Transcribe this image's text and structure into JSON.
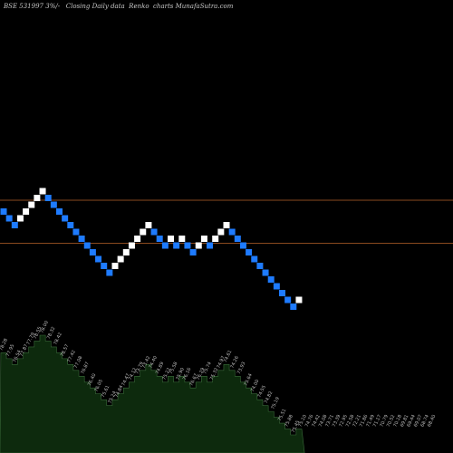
{
  "header": {
    "symbol": "BSE 531997",
    "change": "3%",
    "extra": "/-",
    "description": "Closing Daily data",
    "chart_type": "Renko",
    "source": "charts MunafaSutra.com"
  },
  "colors": {
    "background": "#000000",
    "up_brick": "#ffffff",
    "down_brick": "#1e7bff",
    "level_line": "#8a4a1f",
    "volume_fill": "#0d2a0d",
    "volume_stroke": "#3a6a3a"
  },
  "chart_data": {
    "type": "renko",
    "title": "",
    "levels": [
      77.4,
      73.6
    ],
    "bricks": [
      {
        "close": 76.4,
        "dir": "down"
      },
      {
        "close": 75.8,
        "dir": "down"
      },
      {
        "close": 75.2,
        "dir": "down"
      },
      {
        "close": 75.8,
        "dir": "up"
      },
      {
        "close": 76.4,
        "dir": "up"
      },
      {
        "close": 77.0,
        "dir": "up"
      },
      {
        "close": 77.6,
        "dir": "up"
      },
      {
        "close": 78.2,
        "dir": "up"
      },
      {
        "close": 77.6,
        "dir": "down"
      },
      {
        "close": 77.0,
        "dir": "down"
      },
      {
        "close": 76.4,
        "dir": "down"
      },
      {
        "close": 75.8,
        "dir": "down"
      },
      {
        "close": 75.2,
        "dir": "down"
      },
      {
        "close": 74.6,
        "dir": "down"
      },
      {
        "close": 74.0,
        "dir": "down"
      },
      {
        "close": 73.4,
        "dir": "down"
      },
      {
        "close": 72.8,
        "dir": "down"
      },
      {
        "close": 72.2,
        "dir": "down"
      },
      {
        "close": 71.6,
        "dir": "down"
      },
      {
        "close": 71.0,
        "dir": "down"
      },
      {
        "close": 71.6,
        "dir": "up"
      },
      {
        "close": 72.2,
        "dir": "up"
      },
      {
        "close": 72.8,
        "dir": "up"
      },
      {
        "close": 73.4,
        "dir": "up"
      },
      {
        "close": 74.0,
        "dir": "up"
      },
      {
        "close": 74.6,
        "dir": "up"
      },
      {
        "close": 75.2,
        "dir": "up"
      },
      {
        "close": 74.6,
        "dir": "down"
      },
      {
        "close": 74.0,
        "dir": "down"
      },
      {
        "close": 73.4,
        "dir": "down"
      },
      {
        "close": 74.0,
        "dir": "up"
      },
      {
        "close": 73.4,
        "dir": "down"
      },
      {
        "close": 74.0,
        "dir": "up"
      },
      {
        "close": 73.4,
        "dir": "down"
      },
      {
        "close": 72.8,
        "dir": "down"
      },
      {
        "close": 73.4,
        "dir": "up"
      },
      {
        "close": 74.0,
        "dir": "up"
      },
      {
        "close": 73.4,
        "dir": "down"
      },
      {
        "close": 74.0,
        "dir": "up"
      },
      {
        "close": 74.6,
        "dir": "up"
      },
      {
        "close": 75.2,
        "dir": "up"
      },
      {
        "close": 74.6,
        "dir": "down"
      },
      {
        "close": 74.0,
        "dir": "down"
      },
      {
        "close": 73.4,
        "dir": "down"
      },
      {
        "close": 72.8,
        "dir": "down"
      },
      {
        "close": 72.2,
        "dir": "down"
      },
      {
        "close": 71.6,
        "dir": "down"
      },
      {
        "close": 71.0,
        "dir": "down"
      },
      {
        "close": 70.4,
        "dir": "down"
      },
      {
        "close": 69.8,
        "dir": "down"
      },
      {
        "close": 69.2,
        "dir": "down"
      },
      {
        "close": 68.6,
        "dir": "down"
      },
      {
        "close": 68.0,
        "dir": "down"
      },
      {
        "close": 68.6,
        "dir": "up"
      }
    ],
    "volume_labels": [
      "78.28",
      "77.95",
      "76.54",
      "77.87",
      "77.79",
      "78.55",
      "78.00",
      "78.32",
      "78.42",
      "78.57",
      "77.42",
      "77.08",
      "76.87",
      "76.40",
      "76.05",
      "75.61",
      "75.24",
      "74.84",
      "74.47",
      "74.12",
      "73.79",
      "73.42",
      "74.40",
      "74.89",
      "75.22",
      "75.58",
      "75.90",
      "76.16",
      "76.67",
      "76.29",
      "75.74",
      "75.32",
      "74.97",
      "74.61",
      "74.26",
      "73.93",
      "73.64",
      "74.00",
      "74.55",
      "74.82",
      "75.19",
      "75.51",
      "75.88",
      "75.45",
      "75.10",
      "74.76",
      "74.42",
      "74.08",
      "73.71",
      "73.39",
      "72.95",
      "72.58",
      "72.21",
      "71.86",
      "71.49",
      "71.17",
      "70.79",
      "70.52",
      "70.18",
      "69.81",
      "69.44",
      "69.07",
      "68.74",
      "68.40"
    ]
  }
}
